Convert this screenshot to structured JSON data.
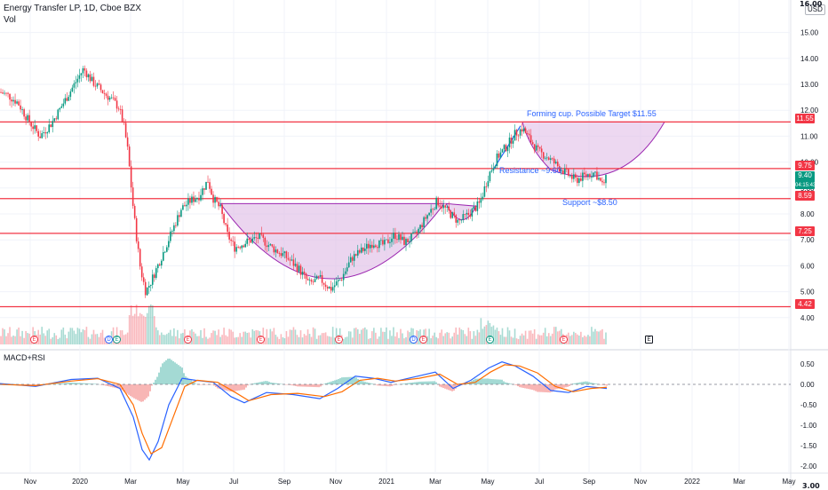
{
  "header": {
    "title": "Energy Transfer LP, 1D, Cboe BZX",
    "vol_label": "Vol",
    "macd_label": "MACD+RSI",
    "currency": "USD"
  },
  "annotations": {
    "target": "Forming cup. Possible Target $11.55",
    "resistance": "Resistance ~9.60",
    "support": "Support ~$8.50"
  },
  "price_labels": {
    "target": "11.55",
    "resistance": "9.75",
    "current": "9.40",
    "countdown": "04:15:43",
    "support": "8.59",
    "mid": "7.25",
    "low": "4.42"
  },
  "clipped_labels": {
    "top": "16.00",
    "bottom": "3.00"
  },
  "events": [
    {
      "kind": "earn",
      "letter": "E"
    },
    {
      "kind": "div",
      "letter": "D"
    },
    {
      "kind": "split",
      "letter": "E"
    },
    {
      "kind": "earn",
      "letter": "E"
    },
    {
      "kind": "earn",
      "letter": "E"
    },
    {
      "kind": "earn",
      "letter": "E"
    },
    {
      "kind": "div",
      "letter": "D"
    },
    {
      "kind": "earn",
      "letter": "E"
    },
    {
      "kind": "split",
      "letter": "E"
    },
    {
      "kind": "earn",
      "letter": "E"
    },
    {
      "kind": "future",
      "letter": "E"
    }
  ],
  "colors": {
    "up": "#089981",
    "down": "#f23645",
    "hline": "#f23645",
    "cup_fill": "#e1bee7",
    "cup_stroke": "#9c27b0",
    "accent": "#2962ff",
    "macd": "#2962ff",
    "signal": "#ff6d00",
    "grid": "#f0f3fa"
  },
  "chart_data": [
    {
      "type": "candlestick",
      "title": "Energy Transfer LP, 1D, Cboe BZX",
      "x_labels": [
        "Nov",
        "2020",
        "Mar",
        "May",
        "Jul",
        "Sep",
        "Nov",
        "2021",
        "Mar",
        "May",
        "Jul",
        "Sep",
        "Nov",
        "2022",
        "Mar",
        "May"
      ],
      "y_ticks": [
        3.0,
        4.0,
        5.0,
        6.0,
        7.0,
        8.0,
        9.0,
        10.0,
        11.0,
        12.0,
        13.0,
        14.0,
        15.0,
        16.0
      ],
      "ylim": [
        3,
        16
      ],
      "close_path": [
        {
          "x": 0,
          "y": 12.7
        },
        {
          "x": 8,
          "y": 12.6
        },
        {
          "x": 20,
          "y": 12.3
        },
        {
          "x": 32,
          "y": 11.6
        },
        {
          "x": 45,
          "y": 11.0
        },
        {
          "x": 58,
          "y": 11.5
        },
        {
          "x": 70,
          "y": 12.2
        },
        {
          "x": 82,
          "y": 12.9
        },
        {
          "x": 94,
          "y": 13.6
        },
        {
          "x": 104,
          "y": 13.1
        },
        {
          "x": 116,
          "y": 12.7
        },
        {
          "x": 126,
          "y": 12.4
        },
        {
          "x": 134,
          "y": 12.1
        },
        {
          "x": 140,
          "y": 11.3
        },
        {
          "x": 144,
          "y": 10.4
        },
        {
          "x": 150,
          "y": 8.2
        },
        {
          "x": 154,
          "y": 7.0
        },
        {
          "x": 158,
          "y": 5.9
        },
        {
          "x": 164,
          "y": 5.0
        },
        {
          "x": 170,
          "y": 5.4
        },
        {
          "x": 180,
          "y": 6.2
        },
        {
          "x": 192,
          "y": 7.2
        },
        {
          "x": 204,
          "y": 8.2
        },
        {
          "x": 214,
          "y": 8.5
        },
        {
          "x": 224,
          "y": 8.7
        },
        {
          "x": 234,
          "y": 9.3
        },
        {
          "x": 240,
          "y": 8.6
        },
        {
          "x": 248,
          "y": 8.2
        },
        {
          "x": 256,
          "y": 7.2
        },
        {
          "x": 264,
          "y": 6.7
        },
        {
          "x": 276,
          "y": 6.9
        },
        {
          "x": 292,
          "y": 7.1
        },
        {
          "x": 306,
          "y": 6.7
        },
        {
          "x": 320,
          "y": 6.4
        },
        {
          "x": 336,
          "y": 5.9
        },
        {
          "x": 348,
          "y": 5.3
        },
        {
          "x": 360,
          "y": 5.5
        },
        {
          "x": 372,
          "y": 5.1
        },
        {
          "x": 384,
          "y": 5.5
        },
        {
          "x": 396,
          "y": 6.3
        },
        {
          "x": 408,
          "y": 6.6
        },
        {
          "x": 420,
          "y": 6.9
        },
        {
          "x": 432,
          "y": 6.8
        },
        {
          "x": 444,
          "y": 7.2
        },
        {
          "x": 456,
          "y": 6.9
        },
        {
          "x": 468,
          "y": 7.2
        },
        {
          "x": 480,
          "y": 7.9
        },
        {
          "x": 492,
          "y": 8.5
        },
        {
          "x": 504,
          "y": 8.1
        },
        {
          "x": 516,
          "y": 7.7
        },
        {
          "x": 528,
          "y": 8.0
        },
        {
          "x": 540,
          "y": 8.4
        },
        {
          "x": 550,
          "y": 9.5
        },
        {
          "x": 560,
          "y": 10.2
        },
        {
          "x": 570,
          "y": 10.6
        },
        {
          "x": 580,
          "y": 11.1
        },
        {
          "x": 588,
          "y": 11.3
        },
        {
          "x": 596,
          "y": 10.9
        },
        {
          "x": 606,
          "y": 10.4
        },
        {
          "x": 616,
          "y": 10.2
        },
        {
          "x": 626,
          "y": 9.9
        },
        {
          "x": 636,
          "y": 9.6
        },
        {
          "x": 648,
          "y": 9.3
        },
        {
          "x": 660,
          "y": 9.5
        },
        {
          "x": 670,
          "y": 9.6
        },
        {
          "x": 678,
          "y": 9.1
        },
        {
          "x": 683,
          "y": 9.4
        }
      ],
      "horizontal_levels": [
        11.55,
        9.75,
        8.59,
        7.25,
        4.42
      ],
      "target": 11.55,
      "resistance": 9.6,
      "support": 8.5,
      "last_close": 9.4
    },
    {
      "type": "line",
      "title": "MACD+RSI",
      "y_ticks": [
        0.5,
        0.0,
        -0.5,
        -1.0,
        -1.5,
        -2.0
      ],
      "ylim": [
        -2.2,
        0.7
      ],
      "zero_line": 0.0,
      "series": [
        {
          "values_path": [
            {
              "x": 0,
              "y": 0.02
            },
            {
              "x": 40,
              "y": -0.05
            },
            {
              "x": 80,
              "y": 0.12
            },
            {
              "x": 110,
              "y": 0.15
            },
            {
              "x": 135,
              "y": -0.1
            },
            {
              "x": 150,
              "y": -0.8
            },
            {
              "x": 160,
              "y": -1.6
            },
            {
              "x": 168,
              "y": -1.85
            },
            {
              "x": 178,
              "y": -1.4
            },
            {
              "x": 190,
              "y": -0.5
            },
            {
              "x": 205,
              "y": 0.15
            },
            {
              "x": 220,
              "y": 0.1
            },
            {
              "x": 240,
              "y": 0.05
            },
            {
              "x": 260,
              "y": -0.3
            },
            {
              "x": 275,
              "y": -0.45
            },
            {
              "x": 300,
              "y": -0.2
            },
            {
              "x": 330,
              "y": -0.25
            },
            {
              "x": 360,
              "y": -0.35
            },
            {
              "x": 380,
              "y": -0.1
            },
            {
              "x": 400,
              "y": 0.2
            },
            {
              "x": 420,
              "y": 0.15
            },
            {
              "x": 440,
              "y": 0.05
            },
            {
              "x": 470,
              "y": 0.2
            },
            {
              "x": 490,
              "y": 0.3
            },
            {
              "x": 510,
              "y": -0.1
            },
            {
              "x": 530,
              "y": 0.1
            },
            {
              "x": 550,
              "y": 0.4
            },
            {
              "x": 565,
              "y": 0.55
            },
            {
              "x": 580,
              "y": 0.45
            },
            {
              "x": 600,
              "y": 0.2
            },
            {
              "x": 620,
              "y": -0.15
            },
            {
              "x": 640,
              "y": -0.2
            },
            {
              "x": 660,
              "y": -0.05
            },
            {
              "x": 683,
              "y": -0.1
            }
          ]
        },
        {
          "values_path": [
            {
              "x": 0,
              "y": 0.0
            },
            {
              "x": 40,
              "y": -0.03
            },
            {
              "x": 80,
              "y": 0.08
            },
            {
              "x": 110,
              "y": 0.14
            },
            {
              "x": 135,
              "y": 0.0
            },
            {
              "x": 150,
              "y": -0.5
            },
            {
              "x": 160,
              "y": -1.2
            },
            {
              "x": 170,
              "y": -1.7
            },
            {
              "x": 182,
              "y": -1.55
            },
            {
              "x": 195,
              "y": -0.8
            },
            {
              "x": 208,
              "y": -0.05
            },
            {
              "x": 222,
              "y": 0.1
            },
            {
              "x": 245,
              "y": 0.05
            },
            {
              "x": 265,
              "y": -0.2
            },
            {
              "x": 280,
              "y": -0.4
            },
            {
              "x": 305,
              "y": -0.25
            },
            {
              "x": 335,
              "y": -0.22
            },
            {
              "x": 365,
              "y": -0.3
            },
            {
              "x": 385,
              "y": -0.18
            },
            {
              "x": 405,
              "y": 0.1
            },
            {
              "x": 425,
              "y": 0.15
            },
            {
              "x": 445,
              "y": 0.08
            },
            {
              "x": 472,
              "y": 0.15
            },
            {
              "x": 495,
              "y": 0.25
            },
            {
              "x": 515,
              "y": 0.0
            },
            {
              "x": 535,
              "y": 0.05
            },
            {
              "x": 552,
              "y": 0.3
            },
            {
              "x": 568,
              "y": 0.48
            },
            {
              "x": 585,
              "y": 0.45
            },
            {
              "x": 605,
              "y": 0.28
            },
            {
              "x": 625,
              "y": -0.05
            },
            {
              "x": 645,
              "y": -0.18
            },
            {
              "x": 665,
              "y": -0.1
            },
            {
              "x": 683,
              "y": -0.07
            }
          ]
        }
      ]
    }
  ]
}
